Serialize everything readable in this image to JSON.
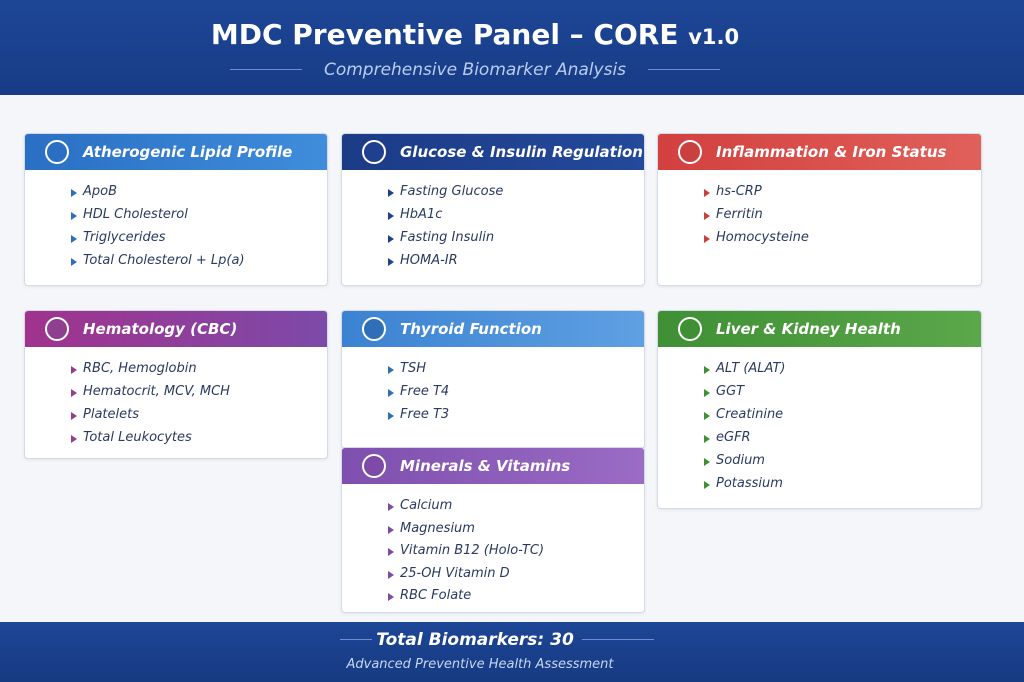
{
  "header": {
    "title": "MDC Preventive Panel – CORE",
    "version": "v1.0",
    "subtitle": "Comprehensive Biomarker Analysis"
  },
  "cards": [
    {
      "title": "Atherogenic Lipid Profile",
      "items": [
        "ApoB",
        "HDL Cholesterol",
        "Triglycerides",
        "Total Cholesterol + Lp(a)"
      ]
    },
    {
      "title": "Glucose & Insulin Regulation",
      "items": [
        "Fasting Glucose",
        "HbA1c",
        "Fasting Insulin",
        "HOMA-IR"
      ]
    },
    {
      "title": "Inflammation & Iron Status",
      "items": [
        "hs-CRP",
        "Ferritin",
        "Homocysteine"
      ]
    },
    {
      "title": "Hematology (CBC)",
      "items": [
        "RBC, Hemoglobin",
        "Hematocrit, MCV, MCH",
        "Platelets",
        "Total Leukocytes"
      ]
    },
    {
      "title": "Thyroid Function",
      "items": [
        "TSH",
        "Free T4",
        "Free T3"
      ]
    },
    {
      "title": "Minerals & Vitamins",
      "items": [
        "Calcium",
        "Magnesium",
        "Vitamin B12 (Holo-TC)",
        "25-OH Vitamin D",
        "RBC Folate"
      ]
    },
    {
      "title": "Liver & Kidney Health",
      "items": [
        "ALT (ALAT)",
        "GGT",
        "Creatinine",
        "eGFR",
        "Sodium",
        "Potassium"
      ]
    }
  ],
  "footer": {
    "total": "Total Biomarkers: 30",
    "subtitle": "Advanced Preventive Health Assessment"
  }
}
